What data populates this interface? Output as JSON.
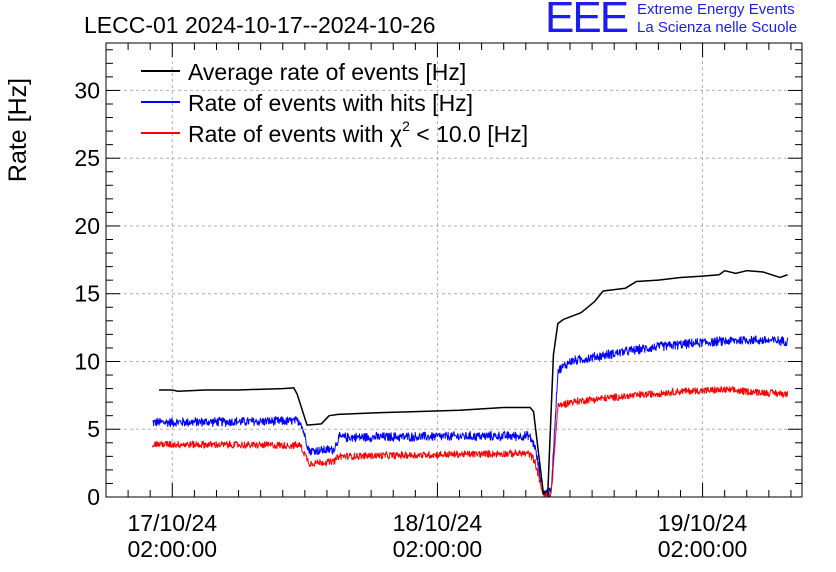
{
  "logo": {
    "mark": "EEE",
    "line1": "Extreme Energy Events",
    "line2": "La Scienza nelle Scuole"
  },
  "colors": {
    "average": "#000000",
    "hits": "#0000ff",
    "chi2": "#ff0000",
    "grid": "#b0b0b0",
    "logo": "#1c1cf0"
  },
  "chart_data": {
    "type": "line",
    "title": "LECC-01 2024-10-17--2024-10-26",
    "xlabel": "",
    "ylabel": "Rate [Hz]",
    "ylim": [
      0,
      33.5
    ],
    "xlim_hours": [
      -6,
      57
    ],
    "y_ticks": [
      0,
      5,
      10,
      15,
      20,
      25,
      30
    ],
    "x_ticks": [
      {
        "hour": 0,
        "date": "17/10/24",
        "time": "02:00:00"
      },
      {
        "hour": 24,
        "date": "18/10/24",
        "time": "02:00:00"
      },
      {
        "hour": 48,
        "date": "19/10/24",
        "time": "02:00:00"
      }
    ],
    "grid": true,
    "legend_position": "top-left",
    "legend": [
      {
        "text": "Average rate of events [Hz]",
        "sup": "",
        "suffix": ""
      },
      {
        "text": "Rate of events with hits [Hz]",
        "sup": "",
        "suffix": ""
      },
      {
        "text": "Rate of events with χ",
        "sup": "2",
        "suffix": " < 10.0 [Hz]"
      }
    ],
    "series": [
      {
        "name": "Average rate of events [Hz]",
        "points": [
          [
            -1.2,
            7.9
          ],
          [
            0,
            7.9
          ],
          [
            0.5,
            7.8
          ],
          [
            3,
            7.9
          ],
          [
            6,
            7.9
          ],
          [
            10,
            8.0
          ],
          [
            11,
            8.05
          ],
          [
            11.3,
            7.6
          ],
          [
            12.2,
            5.3
          ],
          [
            13.5,
            5.4
          ],
          [
            14.2,
            6.0
          ],
          [
            15,
            6.1
          ],
          [
            18,
            6.2
          ],
          [
            22,
            6.3
          ],
          [
            26,
            6.4
          ],
          [
            30,
            6.6
          ],
          [
            32.4,
            6.6
          ],
          [
            32.7,
            6.3
          ],
          [
            33.6,
            0.2
          ],
          [
            34,
            0.5
          ],
          [
            34.5,
            10.5
          ],
          [
            34.9,
            12.8
          ],
          [
            35.4,
            13.1
          ],
          [
            37,
            13.6
          ],
          [
            38.2,
            14.4
          ],
          [
            39,
            15.2
          ],
          [
            40,
            15.3
          ],
          [
            41,
            15.4
          ],
          [
            42,
            15.9
          ],
          [
            44,
            16.0
          ],
          [
            46,
            16.2
          ],
          [
            48,
            16.3
          ],
          [
            49.5,
            16.4
          ],
          [
            50,
            16.7
          ],
          [
            51,
            16.5
          ],
          [
            52,
            16.7
          ],
          [
            53.5,
            16.6
          ],
          [
            55,
            16.2
          ],
          [
            55.7,
            16.4
          ]
        ]
      },
      {
        "name": "Rate of events with hits [Hz]",
        "noise": 0.32,
        "points": [
          [
            -1.8,
            5.5
          ],
          [
            11.6,
            5.6
          ],
          [
            12.4,
            3.4
          ],
          [
            14.6,
            3.5
          ],
          [
            15.1,
            4.4
          ],
          [
            30,
            4.5
          ],
          [
            32.3,
            4.5
          ],
          [
            32.8,
            3.8
          ],
          [
            33.6,
            0.3
          ],
          [
            34.3,
            0.4
          ],
          [
            34.9,
            9.3
          ],
          [
            36,
            10.0
          ],
          [
            38,
            10.3
          ],
          [
            40,
            10.6
          ],
          [
            44,
            11.1
          ],
          [
            48,
            11.4
          ],
          [
            52,
            11.6
          ],
          [
            55.7,
            11.5
          ]
        ]
      },
      {
        "name": "Rate of events with χ² < 10.0 [Hz]",
        "noise": 0.25,
        "points": [
          [
            -1.8,
            3.9
          ],
          [
            11.6,
            3.8
          ],
          [
            12.4,
            2.5
          ],
          [
            14.6,
            2.6
          ],
          [
            15.1,
            3.0
          ],
          [
            30,
            3.2
          ],
          [
            32.3,
            3.2
          ],
          [
            32.8,
            2.7
          ],
          [
            33.6,
            0.1
          ],
          [
            34.3,
            0.2
          ],
          [
            34.9,
            6.7
          ],
          [
            36,
            7.0
          ],
          [
            38,
            7.2
          ],
          [
            42,
            7.5
          ],
          [
            46,
            7.8
          ],
          [
            50,
            7.9
          ],
          [
            55.7,
            7.6
          ]
        ]
      }
    ]
  }
}
